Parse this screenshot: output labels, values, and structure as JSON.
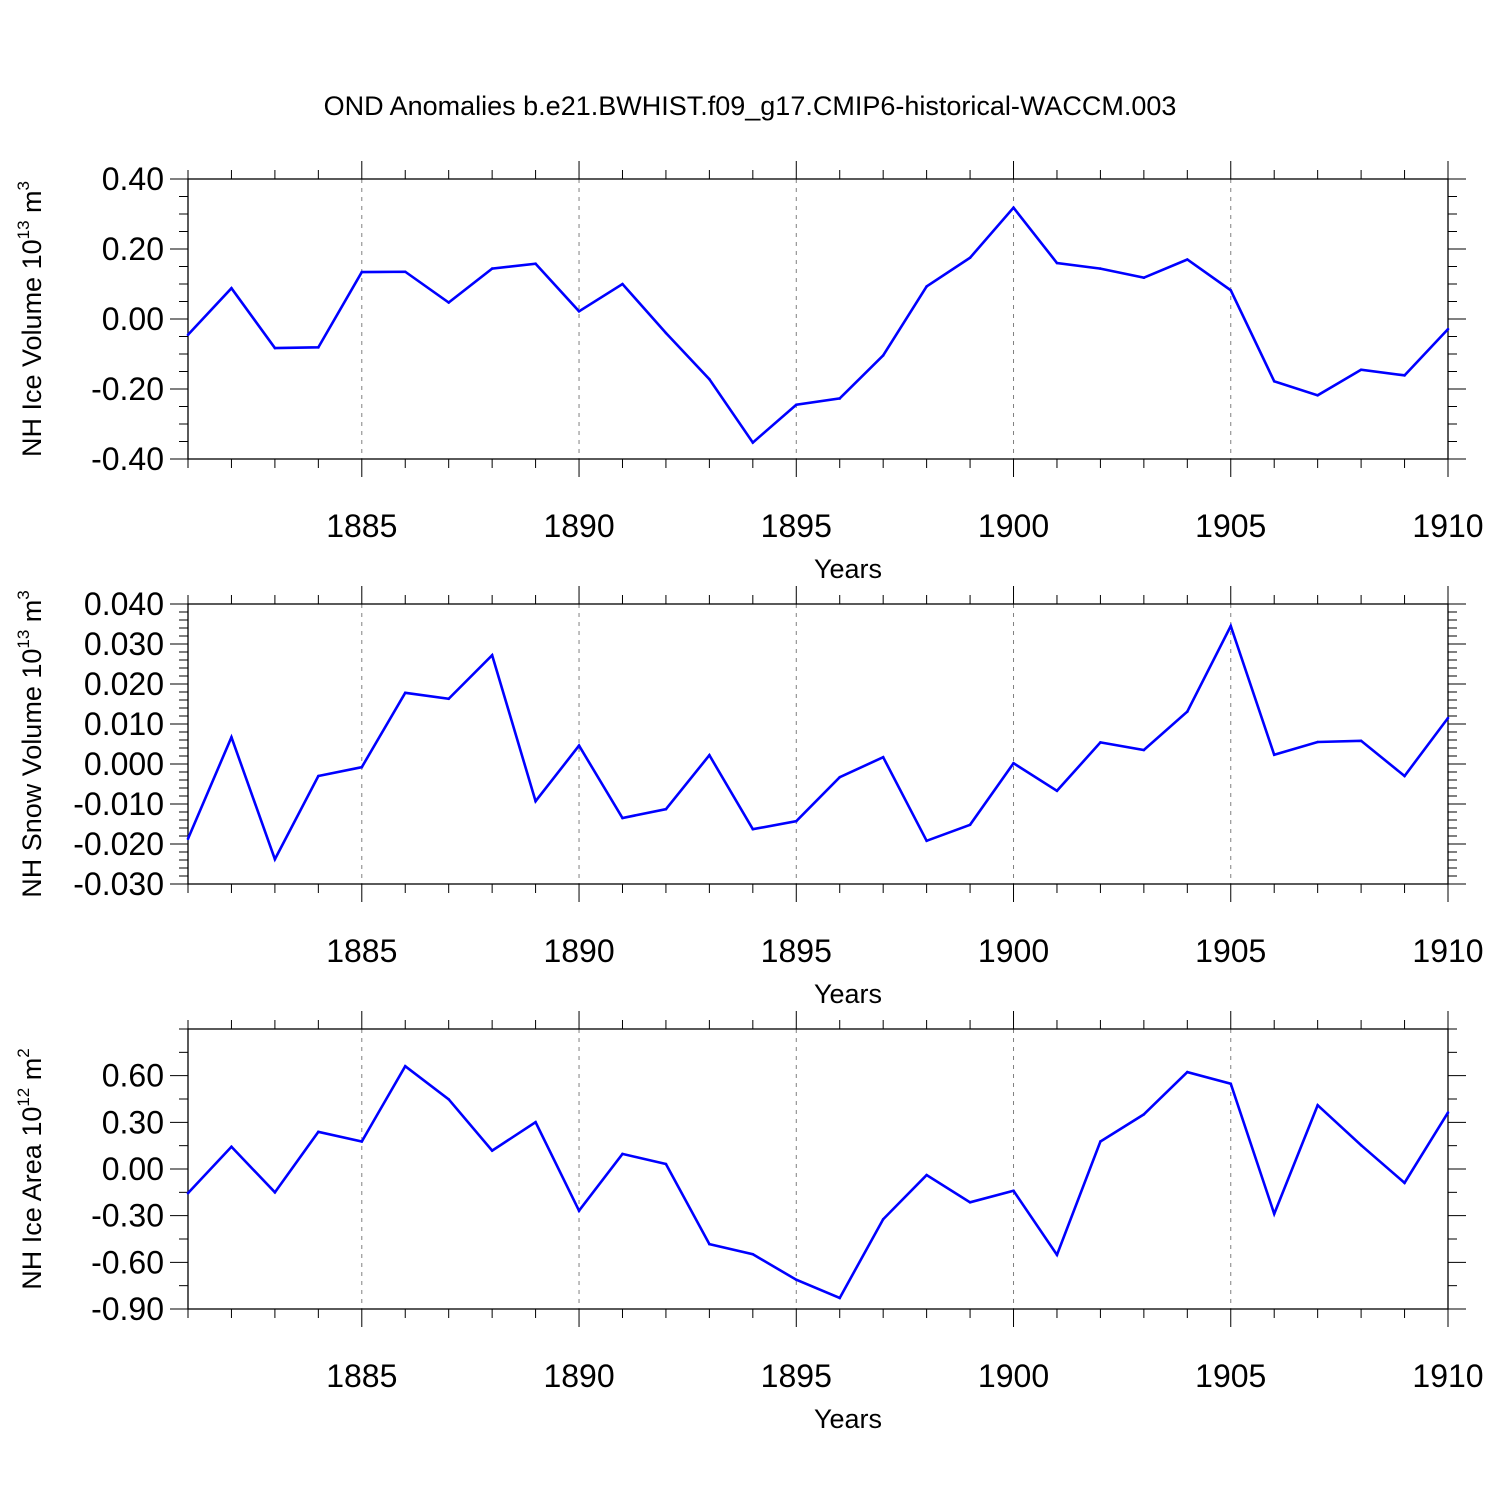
{
  "title": "OND Anomalies b.e21.BWHIST.f09_g17.CMIP6-historical-WACCM.003",
  "colors": {
    "line": "#0000ff",
    "axis": "#000000",
    "grid": "#808080"
  },
  "chart_data": [
    {
      "type": "line",
      "ylabel": "NH Ice Volume 10",
      "ylabel_exp": "13",
      "ylabel_unit": " m",
      "ylabel_unit_exp": "3",
      "xlabel": "Years",
      "xlim": [
        1881,
        1910
      ],
      "ylim": [
        -0.4,
        0.4
      ],
      "yticks": [
        -0.4,
        -0.2,
        0.0,
        0.2,
        0.4
      ],
      "ytick_labels": [
        "-0.40",
        "-0.20",
        "0.00",
        "0.20",
        "0.40"
      ],
      "yminor": 0.05,
      "xticks": [
        1885,
        1890,
        1895,
        1900,
        1905,
        1910
      ],
      "xtick_labels": [
        "1885",
        "1890",
        "1895",
        "1900",
        "1905",
        "1910"
      ],
      "x": [
        1881,
        1882,
        1883,
        1884,
        1885,
        1886,
        1887,
        1888,
        1889,
        1890,
        1891,
        1892,
        1893,
        1894,
        1895,
        1896,
        1897,
        1898,
        1899,
        1900,
        1901,
        1902,
        1903,
        1904,
        1905,
        1906,
        1907,
        1908,
        1909,
        1910
      ],
      "series": [
        {
          "name": "NH Ice Volume",
          "values": [
            -0.045,
            0.088,
            -0.083,
            -0.081,
            0.134,
            0.135,
            0.047,
            0.144,
            0.158,
            0.022,
            0.1,
            -0.04,
            -0.172,
            -0.353,
            -0.245,
            -0.227,
            -0.104,
            0.093,
            0.175,
            0.318,
            0.16,
            0.144,
            0.118,
            0.17,
            0.082,
            -0.178,
            -0.218,
            -0.145,
            -0.161,
            -0.029
          ]
        }
      ]
    },
    {
      "type": "line",
      "ylabel": "NH Snow Volume 10",
      "ylabel_exp": "13",
      "ylabel_unit": " m",
      "ylabel_unit_exp": "3",
      "xlabel": "Years",
      "xlim": [
        1881,
        1910
      ],
      "ylim": [
        -0.03,
        0.04
      ],
      "yticks": [
        -0.03,
        -0.02,
        -0.01,
        0.0,
        0.01,
        0.02,
        0.03,
        0.04
      ],
      "ytick_labels": [
        "-0.030",
        "-0.020",
        "-0.010",
        "0.000",
        "0.010",
        "0.020",
        "0.030",
        "0.040"
      ],
      "yminor": 0.002,
      "xticks": [
        1885,
        1890,
        1895,
        1900,
        1905,
        1910
      ],
      "xtick_labels": [
        "1885",
        "1890",
        "1895",
        "1900",
        "1905",
        "1910"
      ],
      "x": [
        1881,
        1882,
        1883,
        1884,
        1885,
        1886,
        1887,
        1888,
        1889,
        1890,
        1891,
        1892,
        1893,
        1894,
        1895,
        1896,
        1897,
        1898,
        1899,
        1900,
        1901,
        1902,
        1903,
        1904,
        1905,
        1906,
        1907,
        1908,
        1909,
        1910
      ],
      "series": [
        {
          "name": "NH Snow Volume",
          "values": [
            -0.0187,
            0.0067,
            -0.0238,
            -0.003,
            -0.0008,
            0.0178,
            0.0163,
            0.0272,
            -0.0093,
            0.0046,
            -0.0135,
            -0.0113,
            0.0022,
            -0.0163,
            -0.0143,
            -0.0033,
            0.0017,
            -0.0192,
            -0.0152,
            0.0002,
            -0.0067,
            0.0054,
            0.0035,
            0.0131,
            0.0345,
            0.0023,
            0.0055,
            0.0058,
            -0.003,
            0.0115
          ]
        }
      ]
    },
    {
      "type": "line",
      "ylabel": "NH Ice Area 10",
      "ylabel_exp": "12",
      "ylabel_unit": " m",
      "ylabel_unit_exp": "2",
      "xlabel": "Years",
      "xlim": [
        1881,
        1910
      ],
      "ylim": [
        -0.9,
        0.9
      ],
      "yticks": [
        -0.9,
        -0.6,
        -0.3,
        0.0,
        0.3,
        0.6
      ],
      "ytick_labels": [
        "-0.90",
        "-0.60",
        "-0.30",
        "0.00",
        "0.30",
        "0.60"
      ],
      "yminor": 0.15,
      "xticks": [
        1885,
        1890,
        1895,
        1900,
        1905,
        1910
      ],
      "xtick_labels": [
        "1885",
        "1890",
        "1895",
        "1900",
        "1905",
        "1910"
      ],
      "x": [
        1881,
        1882,
        1883,
        1884,
        1885,
        1886,
        1887,
        1888,
        1889,
        1890,
        1891,
        1892,
        1893,
        1894,
        1895,
        1896,
        1897,
        1898,
        1899,
        1900,
        1901,
        1902,
        1903,
        1904,
        1905,
        1906,
        1907,
        1908,
        1909,
        1910
      ],
      "series": [
        {
          "name": "NH Ice Area",
          "values": [
            -0.155,
            0.143,
            -0.15,
            0.239,
            0.177,
            0.661,
            0.448,
            0.118,
            0.301,
            -0.268,
            0.097,
            0.032,
            -0.483,
            -0.548,
            -0.712,
            -0.829,
            -0.323,
            -0.039,
            -0.214,
            -0.14,
            -0.552,
            0.177,
            0.351,
            0.623,
            0.548,
            -0.288,
            0.41,
            0.153,
            -0.089,
            0.363
          ]
        }
      ]
    }
  ]
}
